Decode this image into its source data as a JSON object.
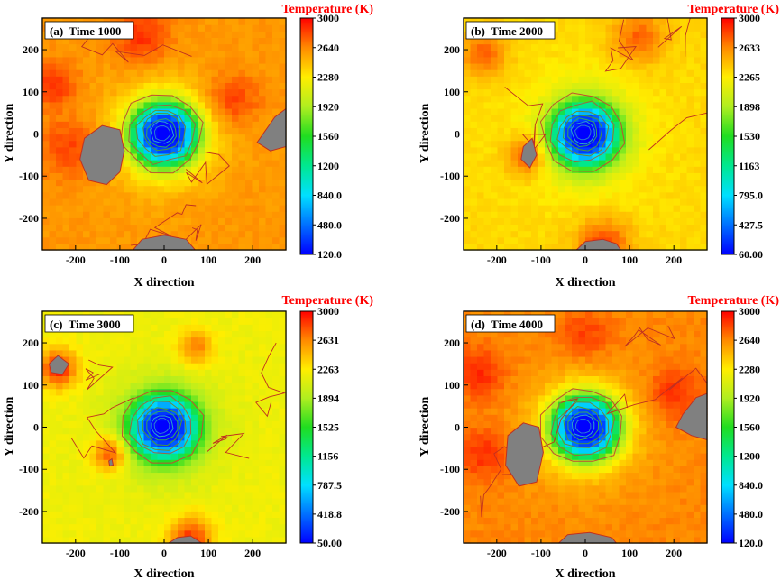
{
  "chart_data": [
    {
      "type": "heatmap",
      "panel_label": "(a)  Time 1000",
      "xlabel": "X direction",
      "ylabel": "Y direction",
      "colorbar_title": "Temperature (K)",
      "xlim": [
        -275,
        275
      ],
      "ylim": [
        -275,
        275
      ],
      "xticks": [
        -200,
        -100,
        0,
        100,
        200
      ],
      "yticks": [
        -200,
        -100,
        0,
        100,
        200
      ],
      "colorbar_range": [
        120,
        3000
      ],
      "colorbar_ticks": [
        "3000",
        "2640",
        "2280",
        "1920",
        "1560",
        "1200",
        "840.0",
        "480.0",
        "120.0"
      ],
      "center_value": 120,
      "background_value": 2600,
      "hot_regions": [
        [
          -250,
          120,
          50,
          2900
        ],
        [
          -50,
          230,
          60,
          2900
        ],
        [
          150,
          80,
          60,
          2900
        ],
        [
          -210,
          -30,
          70,
          2850
        ]
      ],
      "gray_regions": [
        [
          [
            -180,
            -10
          ],
          [
            -140,
            20
          ],
          [
            -100,
            10
          ],
          [
            -90,
            -40
          ],
          [
            -100,
            -90
          ],
          [
            -130,
            -120
          ],
          [
            -170,
            -110
          ],
          [
            -190,
            -60
          ]
        ],
        [
          [
            230,
            10
          ],
          [
            250,
            40
          ],
          [
            275,
            60
          ],
          [
            275,
            -30
          ],
          [
            240,
            -40
          ],
          [
            210,
            -20
          ]
        ],
        [
          [
            -70,
            -275
          ],
          [
            -50,
            -250
          ],
          [
            0,
            -240
          ],
          [
            50,
            -250
          ],
          [
            70,
            -275
          ]
        ]
      ]
    },
    {
      "type": "heatmap",
      "panel_label": "(b)  Time 2000",
      "xlabel": "X direction",
      "ylabel": "Y direction",
      "colorbar_title": "Temperature (K)",
      "xlim": [
        -275,
        275
      ],
      "ylim": [
        -275,
        275
      ],
      "xticks": [
        -200,
        -100,
        0,
        100,
        200
      ],
      "yticks": [
        -200,
        -100,
        0,
        100,
        200
      ],
      "colorbar_range": [
        60,
        3000
      ],
      "colorbar_ticks": [
        "3000",
        "2633",
        "2265",
        "1898",
        "1530",
        "1163",
        "795.0",
        "427.5",
        "60.00"
      ],
      "center_value": 60,
      "background_value": 2350,
      "hot_regions": [
        [
          -130,
          -50,
          45,
          2900
        ],
        [
          -230,
          190,
          50,
          2750
        ],
        [
          120,
          230,
          60,
          2750
        ],
        [
          40,
          -260,
          60,
          2850
        ]
      ],
      "gray_regions": [
        [
          [
            -140,
            -30
          ],
          [
            -120,
            -10
          ],
          [
            -110,
            -50
          ],
          [
            -125,
            -80
          ],
          [
            -145,
            -60
          ]
        ],
        [
          [
            -20,
            -275
          ],
          [
            0,
            -255
          ],
          [
            40,
            -250
          ],
          [
            70,
            -260
          ],
          [
            80,
            -275
          ]
        ]
      ]
    },
    {
      "type": "heatmap",
      "panel_label": "(c)  Time 3000",
      "xlabel": "X direction",
      "ylabel": "Y direction",
      "colorbar_title": "Temperature (K)",
      "xlim": [
        -275,
        275
      ],
      "ylim": [
        -275,
        275
      ],
      "xticks": [
        -200,
        -100,
        0,
        100,
        200
      ],
      "yticks": [
        -200,
        -100,
        0,
        100,
        200
      ],
      "colorbar_range": [
        50,
        3000
      ],
      "colorbar_ticks": [
        "3000",
        "2631",
        "2263",
        "1894",
        "1525",
        "1156",
        "787.5",
        "418.8",
        "50.00"
      ],
      "center_value": 50,
      "background_value": 2200,
      "hot_regions": [
        [
          -240,
          140,
          45,
          2950
        ],
        [
          -120,
          -60,
          40,
          2900
        ],
        [
          70,
          190,
          40,
          2700
        ],
        [
          60,
          -260,
          50,
          2850
        ]
      ],
      "gray_regions": [
        [
          [
            -260,
            150
          ],
          [
            -240,
            170
          ],
          [
            -215,
            150
          ],
          [
            -230,
            125
          ],
          [
            -255,
            130
          ]
        ],
        [
          [
            -125,
            -80
          ],
          [
            -118,
            -75
          ],
          [
            -115,
            -90
          ],
          [
            -123,
            -92
          ]
        ],
        [
          [
            10,
            -275
          ],
          [
            30,
            -262
          ],
          [
            60,
            -258
          ],
          [
            85,
            -275
          ]
        ]
      ]
    },
    {
      "type": "heatmap",
      "panel_label": "(d)  Time 4000",
      "xlabel": "X direction",
      "ylabel": "Y direction",
      "colorbar_title": "Temperature (K)",
      "xlim": [
        -275,
        275
      ],
      "ylim": [
        -275,
        275
      ],
      "xticks": [
        -200,
        -100,
        0,
        100,
        200
      ],
      "yticks": [
        -200,
        -100,
        0,
        100,
        200
      ],
      "colorbar_range": [
        120,
        3000
      ],
      "colorbar_ticks": [
        "3000",
        "2640",
        "2280",
        "1920",
        "1560",
        "1200",
        "840.0",
        "480.0",
        "120.0"
      ],
      "center_value": 120,
      "background_value": 2650,
      "hot_regions": [
        [
          -240,
          130,
          60,
          2900
        ],
        [
          0,
          220,
          60,
          2850
        ],
        [
          200,
          80,
          60,
          2900
        ],
        [
          -230,
          -60,
          60,
          2900
        ]
      ],
      "gray_regions": [
        [
          [
            -175,
            -20
          ],
          [
            -140,
            10
          ],
          [
            -105,
            0
          ],
          [
            -95,
            -60
          ],
          [
            -110,
            -130
          ],
          [
            -150,
            -140
          ],
          [
            -180,
            -90
          ]
        ],
        [
          [
            220,
            30
          ],
          [
            250,
            70
          ],
          [
            275,
            80
          ],
          [
            275,
            -30
          ],
          [
            240,
            -20
          ],
          [
            205,
            0
          ]
        ],
        [
          [
            -60,
            -275
          ],
          [
            -40,
            -255
          ],
          [
            10,
            -250
          ],
          [
            60,
            -262
          ],
          [
            70,
            -275
          ]
        ]
      ]
    }
  ]
}
